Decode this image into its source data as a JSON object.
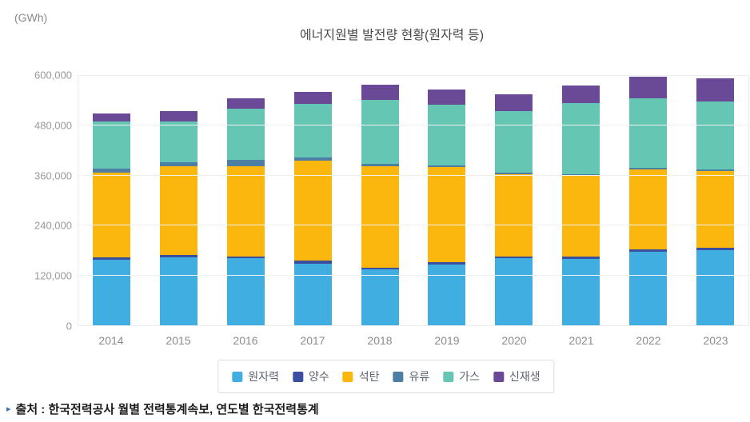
{
  "header": {
    "unit_label": "(GWh)",
    "title": "에너지원별 발전량 현황(원자력 등)"
  },
  "chart_data": {
    "type": "bar",
    "stacked": true,
    "title": "에너지원별 발전량 현황(원자력 등)",
    "ylabel": "(GWh)",
    "xlabel": "",
    "ylim": [
      0,
      600000
    ],
    "yticks": [
      0,
      120000,
      240000,
      360000,
      480000,
      600000
    ],
    "grid": true,
    "legend_position": "bottom",
    "categories": [
      "2014",
      "2015",
      "2016",
      "2017",
      "2018",
      "2019",
      "2020",
      "2021",
      "2022",
      "2023"
    ],
    "series": [
      {
        "id": "nuclear",
        "name": "원자력",
        "color": "#41aee2",
        "values": [
          156000,
          163000,
          160000,
          148000,
          133500,
          146000,
          160000,
          159000,
          176000,
          180000
        ]
      },
      {
        "id": "pumped-storage",
        "name": "양수",
        "color": "#3b4fa0",
        "values": [
          6000,
          6000,
          5000,
          6000,
          5000,
          5000,
          4000,
          5000,
          5000,
          5000
        ]
      },
      {
        "id": "coal",
        "name": "석탄",
        "color": "#fcb70e",
        "values": [
          204000,
          211000,
          216000,
          239000,
          242000,
          227000,
          197000,
          194000,
          192000,
          184000
        ]
      },
      {
        "id": "oil",
        "name": "유류",
        "color": "#4d7ea3",
        "values": [
          8500,
          10000,
          14000,
          9000,
          6000,
          4000,
          4000,
          3000,
          3000,
          3000
        ]
      },
      {
        "id": "gas",
        "name": "가스",
        "color": "#66c6b4",
        "values": [
          112000,
          98000,
          123000,
          127000,
          152000,
          145000,
          147000,
          171000,
          166000,
          163000
        ]
      },
      {
        "id": "renewables",
        "name": "신재생",
        "color": "#6a4a97",
        "values": [
          20000,
          24000,
          24000,
          29000,
          36000,
          36000,
          40000,
          42000,
          52000,
          55000
        ]
      }
    ]
  },
  "footer": {
    "bullet": "▸",
    "source": "출처 : 한국전력공사 월별 전력통계속보, 연도별 한국전력통계"
  },
  "colors": {
    "grid": "#f2f2f2",
    "plot_border": "#ececec",
    "axis_text": "#9a9a9a",
    "title_text": "#4a4a4a",
    "source_bullet": "#3e6cb5"
  }
}
